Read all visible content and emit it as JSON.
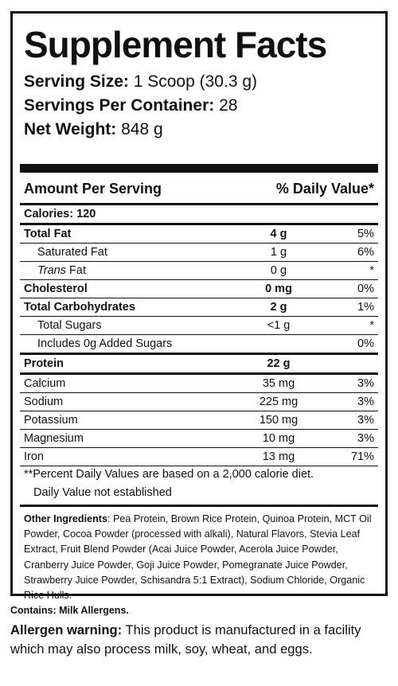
{
  "title": "Supplement Facts",
  "serving": {
    "size_label": "Serving Size:",
    "size_value": "1 Scoop (30.3 g)",
    "per_container_label": "Servings Per Container:",
    "per_container_value": "28",
    "net_weight_label": "Net Weight:",
    "net_weight_value": "848 g"
  },
  "header": {
    "amount": "Amount Per Serving",
    "dv": "% Daily Value*"
  },
  "calories": "Calories: 120",
  "rows": [
    {
      "label": "Total Fat",
      "amount": "4 g",
      "dv": "5%"
    },
    {
      "label": "Saturated Fat",
      "amount": "1 g",
      "dv": "6%"
    },
    {
      "label_italic": "Trans",
      "label": " Fat",
      "amount": "0 g",
      "dv": "*"
    },
    {
      "label": "Cholesterol",
      "amount": "0 mg",
      "dv": "0%"
    },
    {
      "label": "Total Carbohydrates",
      "amount": "2 g",
      "dv": "1%"
    },
    {
      "label": "Total Sugars",
      "amount": "<1 g",
      "dv": "*"
    },
    {
      "label": "Includes 0g Added Sugars",
      "amount": "",
      "dv": "0%"
    },
    {
      "label": "Protein",
      "amount": "22 g",
      "dv": ""
    },
    {
      "label": "Calcium",
      "amount": "35 mg",
      "dv": "3%"
    },
    {
      "label": "Sodium",
      "amount": "225 mg",
      "dv": "3%"
    },
    {
      "label": "Potassium",
      "amount": "150 mg",
      "dv": "3%"
    },
    {
      "label": "Magnesium",
      "amount": "10 mg",
      "dv": "3%"
    },
    {
      "label": "Iron",
      "amount": "13 mg",
      "dv": "71%"
    }
  ],
  "footnote1": "**Percent Daily Values are based on a 2,000 calorie diet.",
  "footnote2": "Daily Value not established",
  "ingredients": {
    "label": "Other Ingredients",
    "text": ": Pea Protein, Brown Rice Protein, Quinoa Protein, MCT Oil Powder, Cocoa Powder (processed with alkali), Natural Flavors, Stevia Leaf Extract, Fruit Blend Powder (Acai Juice Powder, Acerola Juice Powder, Cranberry Juice Powder, Goji Juice Powder, Pomegranate Juice Powder, Strawberry Juice Powder, Schisandra 5:1 Extract), Sodium Chloride, Organic Rice Hulls."
  },
  "contains": "Contains: Milk Allergens.",
  "allergen": {
    "label": "Allergen warning:",
    "text": " This product is manufactured in a facility which may also process milk, soy, wheat, and eggs."
  }
}
